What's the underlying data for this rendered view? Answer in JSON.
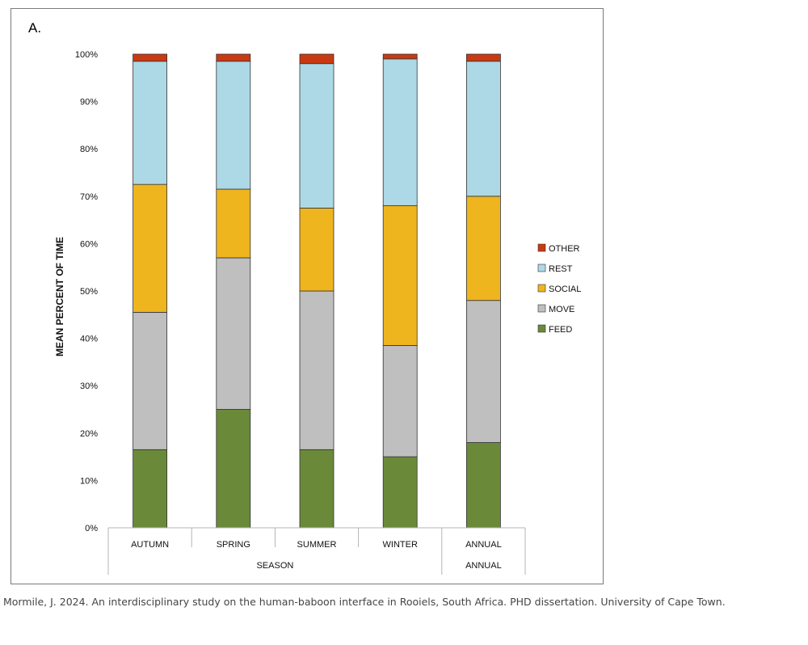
{
  "chart_data": {
    "type": "bar",
    "stacked": true,
    "panel_label": "A.",
    "categories": [
      "AUTUMN",
      "SPRING",
      "SUMMER",
      "WINTER",
      "ANNUAL"
    ],
    "group_labels": [
      {
        "label": "SEASON",
        "categories": [
          "AUTUMN",
          "SPRING",
          "SUMMER",
          "WINTER"
        ]
      },
      {
        "label": "ANNUAL",
        "categories": [
          "ANNUAL"
        ]
      }
    ],
    "ylabel": "MEAN PERCENT OF TIME",
    "xlabel": "",
    "ylim": [
      0,
      100
    ],
    "y_ticks": [
      "0%",
      "10%",
      "20%",
      "30%",
      "40%",
      "50%",
      "60%",
      "70%",
      "80%",
      "90%",
      "100%"
    ],
    "grid": false,
    "legend_position": "right",
    "series": [
      {
        "name": "FEED",
        "color": "#6a8a3a",
        "values": [
          16.5,
          25,
          16.5,
          15,
          18
        ]
      },
      {
        "name": "MOVE",
        "color": "#bfbfbf",
        "values": [
          29,
          32,
          33.5,
          23.5,
          30
        ]
      },
      {
        "name": "SOCIAL",
        "color": "#efb51f",
        "values": [
          27,
          14.5,
          17.5,
          29.5,
          22
        ]
      },
      {
        "name": "REST",
        "color": "#add8e6",
        "values": [
          26,
          27,
          30.5,
          31,
          28.5
        ]
      },
      {
        "name": "OTHER",
        "color": "#c93a12",
        "values": [
          1.5,
          1.5,
          2,
          1,
          1.5
        ]
      }
    ]
  },
  "caption": "Mormile, J. 2024. An interdisciplinary study on the human-baboon interface in Rooiels, South Africa. PHD dissertation. University of Cape Town."
}
